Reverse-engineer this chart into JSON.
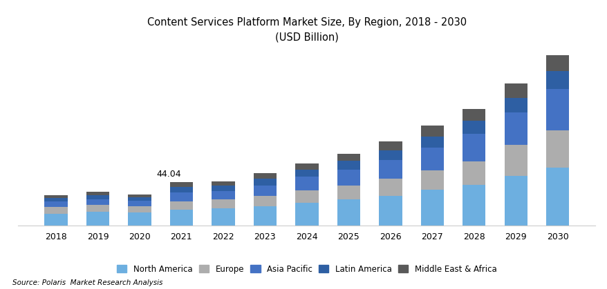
{
  "years": [
    2018,
    2019,
    2020,
    2021,
    2022,
    2023,
    2024,
    2025,
    2026,
    2027,
    2028,
    2029,
    2030
  ],
  "north_america": [
    12.0,
    13.5,
    13.0,
    16.0,
    17.5,
    19.5,
    22.5,
    26.0,
    30.0,
    36.0,
    41.0,
    50.0,
    58.0
  ],
  "europe": [
    6.5,
    7.0,
    6.5,
    8.5,
    9.0,
    10.5,
    13.0,
    14.5,
    17.0,
    19.5,
    23.5,
    31.0,
    38.0
  ],
  "asia_pacific": [
    5.5,
    6.0,
    5.5,
    8.5,
    8.5,
    10.5,
    13.5,
    16.0,
    19.0,
    23.0,
    28.0,
    33.0,
    42.0
  ],
  "latin_america": [
    3.5,
    4.0,
    3.5,
    6.0,
    5.5,
    6.5,
    7.5,
    8.5,
    10.0,
    11.5,
    13.0,
    15.0,
    18.0
  ],
  "mea": [
    3.0,
    3.5,
    3.0,
    5.04,
    4.0,
    5.5,
    6.0,
    7.5,
    9.0,
    10.5,
    12.0,
    14.0,
    16.0
  ],
  "colors": {
    "north_america": "#6DAFE0",
    "europe": "#ADADAD",
    "asia_pacific": "#4472C4",
    "latin_america": "#2E5FA3",
    "mea": "#595959"
  },
  "annotation_year": 2021,
  "annotation_text": "44.04",
  "title_line1": "Content Services Platform Market Size, By Region, 2018 - 2030",
  "title_line2": "(USD Billion)",
  "source": "Source: Polaris  Market Research Analysis",
  "legend_labels": [
    "North America",
    "Europe",
    "Asia Pacific",
    "Latin America",
    "Middle East & Africa"
  ],
  "background_color": "#ffffff",
  "bar_width": 0.55,
  "ylim": [
    0,
    175
  ]
}
